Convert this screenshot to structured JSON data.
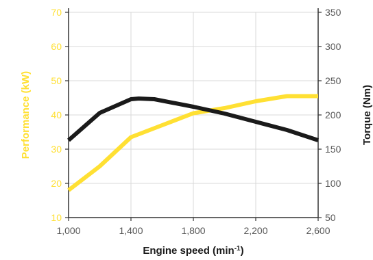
{
  "chart_data": {
    "type": "line",
    "colors": {
      "performance": "#ffe033",
      "torque": "#1a1a1a",
      "left_tick": "#ffe033",
      "right_tick": "#555555",
      "grid": "#d8d8d8"
    },
    "xlabel_main": "Engine speed (min",
    "xlabel_sup": "-1",
    "xlabel_close": ")",
    "x_ticks": [
      1000,
      1400,
      1800,
      2200,
      2600
    ],
    "x_tick_labels": [
      "1,000",
      "1,400",
      "1,800",
      "2,200",
      "2,600"
    ],
    "xlim": [
      1000,
      2600
    ],
    "y_left": {
      "label": "Performance (kW)",
      "lim": [
        10,
        70
      ],
      "ticks": [
        10,
        20,
        30,
        40,
        50,
        60,
        70
      ],
      "tick_labels": [
        "10",
        "20",
        "30",
        "40",
        "50",
        "60",
        "70"
      ]
    },
    "y_right": {
      "label": "Torque (Nm)",
      "lim": [
        50,
        350
      ],
      "ticks": [
        50,
        100,
        150,
        200,
        250,
        300,
        350
      ],
      "tick_labels": [
        "50",
        "100",
        "150",
        "200",
        "250",
        "300",
        "350"
      ]
    },
    "series": [
      {
        "key": "performance",
        "axis": "left",
        "x": [
          1000,
          1200,
          1400,
          1600,
          1800,
          2000,
          2200,
          2400,
          2600
        ],
        "values": [
          18,
          25,
          33.5,
          37,
          40.5,
          42,
          44,
          45.5,
          45.5
        ]
      },
      {
        "key": "torque",
        "axis": "right",
        "x": [
          1000,
          1200,
          1400,
          1450,
          1550,
          1800,
          2000,
          2200,
          2400,
          2600
        ],
        "values": [
          163,
          203,
          223,
          224,
          223,
          212,
          202,
          190,
          178,
          163
        ]
      }
    ]
  }
}
